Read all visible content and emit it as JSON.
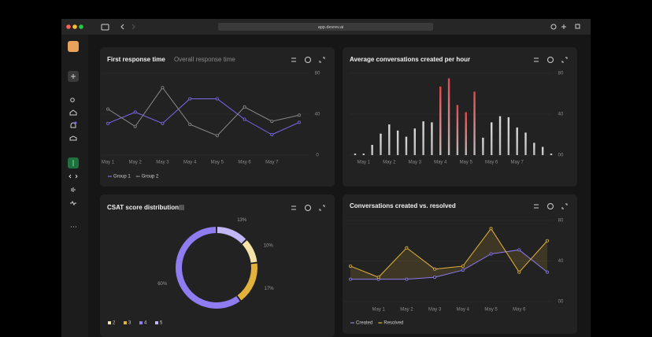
{
  "browser": {
    "url": "app.devrev.ai"
  },
  "chart_data": [
    {
      "type": "line",
      "title": "First response time",
      "tab": "Overall response time",
      "categories": [
        "May 1",
        "May 2",
        "May 3",
        "May 4",
        "May 5",
        "May 6",
        "May 7",
        null
      ],
      "series": [
        {
          "name": "Group 1",
          "color": "#7c6cf0",
          "values": [
            31,
            42,
            31,
            55,
            55,
            35,
            20,
            32
          ]
        },
        {
          "name": "Group 2",
          "color": "#8a8a8a",
          "values": [
            45,
            28,
            66,
            30,
            19,
            47,
            33,
            39
          ]
        }
      ],
      "ylim": [
        0,
        80
      ],
      "yticks": [
        80,
        40,
        0
      ],
      "grid": true,
      "legend": "bottom"
    },
    {
      "type": "bar",
      "title": "Average conversations created per hour",
      "categories": [
        null,
        "May 1",
        null,
        null,
        "May 2",
        null,
        null,
        "May 3",
        null,
        null,
        "May 4",
        null,
        null,
        "May 5",
        null,
        null,
        "May 6",
        null,
        null,
        "May 7",
        null,
        null,
        null,
        null
      ],
      "values": [
        1.5,
        1.5,
        10,
        21,
        30,
        24,
        18,
        26,
        33,
        32,
        67,
        75,
        49,
        42,
        62,
        17,
        32,
        38,
        37,
        27,
        22,
        12,
        8,
        1.5
      ],
      "colors": [
        "#d9d9d9",
        "#d9d9d9",
        "#d9d9d9",
        "#d9d9d9",
        "#d9d9d9",
        "#d9d9d9",
        "#d9d9d9",
        "#d9d9d9",
        "#d9d9d9",
        "#d9d9d9",
        "#e5484d",
        "#e5484d",
        "#e5484d",
        "#e5484d",
        "#e5484d",
        "#d9d9d9",
        "#d9d9d9",
        "#d9d9d9",
        "#d9d9d9",
        "#d9d9d9",
        "#d9d9d9",
        "#d9d9d9",
        "#d9d9d9",
        "#d9d9d9"
      ],
      "ylim": [
        0,
        80
      ],
      "yticks": [
        80,
        40,
        {
          "value": 0,
          "label": "00"
        }
      ],
      "grid": true
    },
    {
      "type": "pie",
      "title": "CSAT score distribution",
      "donut": true,
      "categories": [
        "2",
        "3",
        "4",
        "5"
      ],
      "values": [
        10,
        17,
        60,
        13
      ],
      "value_labels": [
        "10%",
        "17%",
        "60%",
        "13%"
      ],
      "colors": [
        "#f3e3a8",
        "#e2b23a",
        "#8e7cf0",
        "#c2b6f5"
      ],
      "legend": "bottom"
    },
    {
      "type": "line",
      "title": "Conversations created vs. resolved",
      "fill_between": true,
      "categories": [
        null,
        "May 1",
        "May 2",
        "May 3",
        "May 4",
        "May 5",
        "May 6",
        null
      ],
      "series": [
        {
          "name": "Created",
          "color": "#8e7cf0",
          "values": [
            22,
            22,
            22,
            24,
            31,
            47,
            51,
            29
          ]
        },
        {
          "name": "Resolved",
          "color": "#e2b23a",
          "values": [
            35,
            24,
            53,
            32,
            35,
            72,
            29,
            60
          ]
        }
      ],
      "ylim": [
        0,
        80
      ],
      "yticks": [
        80,
        40,
        {
          "value": 0,
          "label": "00"
        }
      ],
      "grid": true,
      "legend": "bottom"
    }
  ]
}
